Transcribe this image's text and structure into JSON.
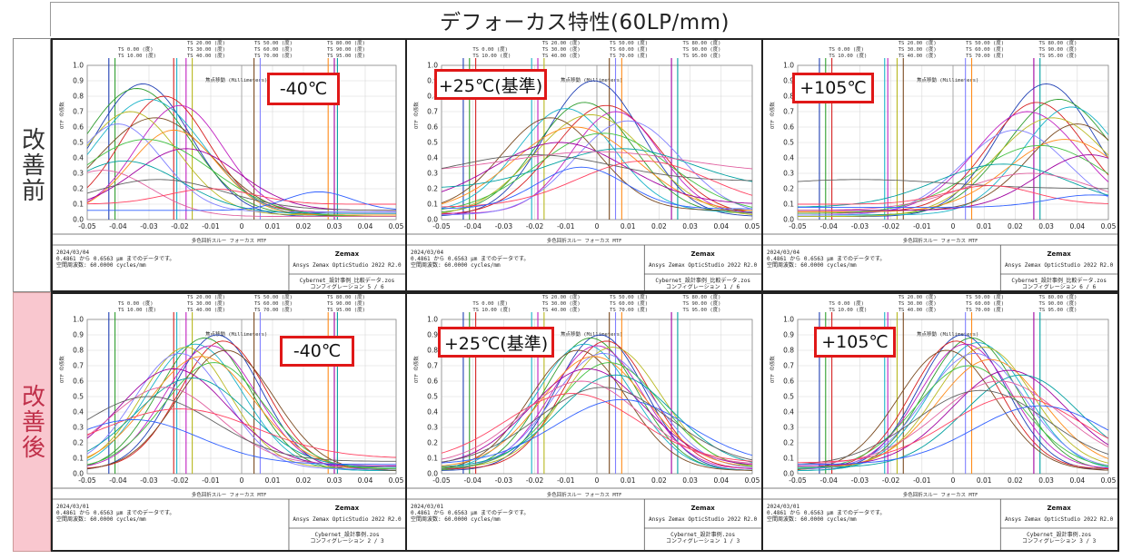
{
  "title": "デフォーカス特性(60LP/mm)",
  "row_labels": {
    "before": "改善前",
    "after": "改善後"
  },
  "colors": {
    "temp_box_border": "#e01818",
    "after_label_bg": "#f9c7cf",
    "after_label_text": "#c0304a"
  },
  "panel_text": {
    "plot_title": "多色回折スルー フォーカス MTF",
    "x_axis_label": "焦点移動 (Millimeters)",
    "y_axis_label": "OTF の係数",
    "company": "Zemax",
    "product": "Ansys Zemax OpticStudio 2022 R2.0",
    "wavelength_line": "0.4861 から 0.6563 µm までのデータです。",
    "freq_line": "空間周波数: 60.0000 cycles/mm",
    "field_legend": [
      "TS 0.00 (度)",
      "TS 10.00 (度)",
      "TS 20.00 (度)",
      "TS 30.00 (度)",
      "TS 40.00 (度)",
      "TS 50.00 (度)",
      "TS 60.00 (度)",
      "TS 70.00 (度)",
      "TS 80.00 (度)",
      "TS 90.00 (度)",
      "TS 95.00 (度)"
    ]
  },
  "chart_data": [
    {
      "type": "line",
      "row": "改善前",
      "temperature_label": "-40℃",
      "date": "2024/03/04",
      "file": "Cybernet_設計事例_比較データ.zos",
      "config": "コンフィグレーション 5 / 6",
      "xlim": [
        -0.05,
        0.05
      ],
      "ylim": [
        0,
        1.0
      ],
      "x_ticks": [
        "-0.05",
        "-0.04",
        "-0.03",
        "-0.02",
        "-0.01",
        "0",
        "0.01",
        "0.02",
        "0.03",
        "0.04",
        "0.05"
      ],
      "y_ticks": [
        "0.0",
        "0.1",
        "0.2",
        "0.3",
        "0.4",
        "0.5",
        "0.6",
        "0.7",
        "0.8",
        "0.9",
        "1.0"
      ],
      "field_markers": [
        -0.043,
        -0.041,
        -0.022,
        -0.021,
        -0.018,
        -0.016,
        0.004,
        0.006,
        0.028,
        0.03,
        0.031
      ],
      "series": [
        {
          "peak": 0.88,
          "center": -0.032,
          "width": 0.022,
          "floor": 0.02
        },
        {
          "peak": 0.85,
          "center": -0.034,
          "width": 0.024,
          "floor": 0.03
        },
        {
          "peak": 0.8,
          "center": -0.025,
          "width": 0.02,
          "floor": 0.05
        },
        {
          "peak": 0.78,
          "center": -0.03,
          "width": 0.025,
          "floor": 0.02
        },
        {
          "peak": 0.74,
          "center": -0.02,
          "width": 0.02,
          "floor": 0.04
        },
        {
          "peak": 0.7,
          "center": -0.036,
          "width": 0.022,
          "floor": 0.03
        },
        {
          "peak": 0.66,
          "center": -0.028,
          "width": 0.026,
          "floor": 0.02
        },
        {
          "peak": 0.62,
          "center": -0.04,
          "width": 0.02,
          "floor": 0.05
        },
        {
          "peak": 0.58,
          "center": -0.022,
          "width": 0.02,
          "floor": 0.03
        },
        {
          "peak": 0.52,
          "center": -0.031,
          "width": 0.03,
          "floor": 0.02
        },
        {
          "peak": 0.46,
          "center": -0.018,
          "width": 0.024,
          "floor": 0.06
        },
        {
          "peak": 0.38,
          "center": -0.038,
          "width": 0.026,
          "floor": 0.04
        },
        {
          "peak": 0.32,
          "center": -0.045,
          "width": 0.022,
          "floor": 0.02
        },
        {
          "peak": 0.26,
          "center": -0.027,
          "width": 0.03,
          "floor": 0.06
        },
        {
          "peak": 0.2,
          "center": -0.01,
          "width": 0.02,
          "floor": 0.1
        },
        {
          "peak": 0.18,
          "center": 0.025,
          "width": 0.015,
          "floor": 0.06
        }
      ]
    },
    {
      "type": "line",
      "row": "改善前",
      "temperature_label": "+25℃(基準)",
      "date": "2024/03/04",
      "file": "Cybernet_設計事例_比較データ.zos",
      "config": "コンフィグレーション 1 / 6",
      "xlim": [
        -0.05,
        0.05
      ],
      "ylim": [
        0,
        1.0
      ],
      "x_ticks": [
        "-0.05",
        "-0.04",
        "-0.03",
        "-0.02",
        "-0.01",
        "0",
        "0.01",
        "0.02",
        "0.03",
        "0.04",
        "0.05"
      ],
      "y_ticks": [
        "0.0",
        "0.1",
        "0.2",
        "0.3",
        "0.4",
        "0.5",
        "0.6",
        "0.7",
        "0.8",
        "0.9",
        "1.0"
      ],
      "field_markers": [
        -0.043,
        -0.041,
        -0.039,
        -0.021,
        -0.019,
        -0.017,
        0.004,
        0.006,
        0.008,
        0.024,
        0.026
      ],
      "series": [
        {
          "peak": 0.9,
          "center": -0.001,
          "width": 0.022,
          "floor": 0.02
        },
        {
          "peak": 0.76,
          "center": -0.004,
          "width": 0.022,
          "floor": 0.04
        },
        {
          "peak": 0.74,
          "center": 0.003,
          "width": 0.024,
          "floor": 0.03
        },
        {
          "peak": 0.72,
          "center": -0.01,
          "width": 0.022,
          "floor": 0.05
        },
        {
          "peak": 0.7,
          "center": 0.006,
          "width": 0.02,
          "floor": 0.04
        },
        {
          "peak": 0.68,
          "center": -0.002,
          "width": 0.026,
          "floor": 0.02
        },
        {
          "peak": 0.66,
          "center": -0.015,
          "width": 0.022,
          "floor": 0.06
        },
        {
          "peak": 0.64,
          "center": 0.01,
          "width": 0.024,
          "floor": 0.03
        },
        {
          "peak": 0.6,
          "center": -0.007,
          "width": 0.028,
          "floor": 0.05
        },
        {
          "peak": 0.56,
          "center": 0.002,
          "width": 0.03,
          "floor": 0.04
        },
        {
          "peak": 0.5,
          "center": -0.012,
          "width": 0.03,
          "floor": 0.1
        },
        {
          "peak": 0.46,
          "center": 0.008,
          "width": 0.032,
          "floor": 0.2
        },
        {
          "peak": 0.44,
          "center": 0.0,
          "width": 0.04,
          "floor": 0.3
        },
        {
          "peak": 0.42,
          "center": -0.02,
          "width": 0.035,
          "floor": 0.25
        },
        {
          "peak": 0.38,
          "center": 0.015,
          "width": 0.03,
          "floor": 0.08
        },
        {
          "peak": 0.34,
          "center": -0.005,
          "width": 0.02,
          "floor": 0.07
        }
      ]
    },
    {
      "type": "line",
      "row": "改善前",
      "temperature_label": "+105℃",
      "date": "2024/03/04",
      "file": "Cybernet_設計事例_比較データ.zos",
      "config": "コンフィグレーション 6 / 6",
      "xlim": [
        -0.05,
        0.05
      ],
      "ylim": [
        0,
        1.0
      ],
      "x_ticks": [
        "-0.05",
        "-0.04",
        "-0.03",
        "-0.02",
        "-0.01",
        "0",
        "0.01",
        "0.02",
        "0.03",
        "0.04",
        "0.05"
      ],
      "y_ticks": [
        "0.0",
        "0.1",
        "0.2",
        "0.3",
        "0.4",
        "0.5",
        "0.6",
        "0.7",
        "0.8",
        "0.9",
        "1.0"
      ],
      "field_markers": [
        -0.043,
        -0.041,
        -0.039,
        -0.022,
        -0.021,
        -0.018,
        -0.016,
        0.004,
        0.006,
        0.026,
        0.028
      ],
      "series": [
        {
          "peak": 0.88,
          "center": 0.03,
          "width": 0.022,
          "floor": 0.02
        },
        {
          "peak": 0.78,
          "center": 0.034,
          "width": 0.024,
          "floor": 0.03
        },
        {
          "peak": 0.76,
          "center": 0.027,
          "width": 0.022,
          "floor": 0.05
        },
        {
          "peak": 0.73,
          "center": 0.038,
          "width": 0.022,
          "floor": 0.03
        },
        {
          "peak": 0.7,
          "center": 0.024,
          "width": 0.024,
          "floor": 0.04
        },
        {
          "peak": 0.66,
          "center": 0.032,
          "width": 0.026,
          "floor": 0.02
        },
        {
          "peak": 0.62,
          "center": 0.04,
          "width": 0.022,
          "floor": 0.06
        },
        {
          "peak": 0.58,
          "center": 0.02,
          "width": 0.024,
          "floor": 0.03
        },
        {
          "peak": 0.52,
          "center": 0.036,
          "width": 0.026,
          "floor": 0.05
        },
        {
          "peak": 0.48,
          "center": 0.028,
          "width": 0.03,
          "floor": 0.04
        },
        {
          "peak": 0.42,
          "center": 0.044,
          "width": 0.024,
          "floor": 0.06
        },
        {
          "peak": 0.36,
          "center": 0.016,
          "width": 0.03,
          "floor": 0.08
        },
        {
          "peak": 0.3,
          "center": 0.025,
          "width": 0.03,
          "floor": 0.06
        },
        {
          "peak": 0.26,
          "center": -0.03,
          "width": 0.04,
          "floor": 0.2
        },
        {
          "peak": 0.22,
          "center": 0.012,
          "width": 0.02,
          "floor": 0.1
        },
        {
          "peak": 0.16,
          "center": 0.045,
          "width": 0.02,
          "floor": 0.08
        }
      ]
    },
    {
      "type": "line",
      "row": "改善後",
      "temperature_label": "-40℃",
      "date": "2024/03/01",
      "file": "Cybernet_設計事例.zos",
      "config": "コンフィグレーション 2 / 3",
      "xlim": [
        -0.05,
        0.05
      ],
      "ylim": [
        0,
        1.0
      ],
      "x_ticks": [
        "-0.05",
        "-0.04",
        "-0.03",
        "-0.02",
        "-0.01",
        "0",
        "0.01",
        "0.02",
        "0.03",
        "0.04",
        "0.05"
      ],
      "y_ticks": [
        "0.0",
        "0.1",
        "0.2",
        "0.3",
        "0.4",
        "0.5",
        "0.6",
        "0.7",
        "0.8",
        "0.9",
        "1.0"
      ],
      "field_markers": [
        -0.043,
        -0.041,
        -0.022,
        -0.021,
        -0.018,
        -0.016,
        0.004,
        0.006,
        0.028,
        0.03,
        0.031
      ],
      "series": [
        {
          "peak": 0.9,
          "center": -0.008,
          "width": 0.02,
          "floor": 0.02
        },
        {
          "peak": 0.88,
          "center": -0.012,
          "width": 0.021,
          "floor": 0.02
        },
        {
          "peak": 0.86,
          "center": -0.006,
          "width": 0.02,
          "floor": 0.03
        },
        {
          "peak": 0.84,
          "center": -0.015,
          "width": 0.022,
          "floor": 0.02
        },
        {
          "peak": 0.83,
          "center": -0.01,
          "width": 0.021,
          "floor": 0.03
        },
        {
          "peak": 0.82,
          "center": -0.018,
          "width": 0.02,
          "floor": 0.04
        },
        {
          "peak": 0.8,
          "center": -0.005,
          "width": 0.022,
          "floor": 0.02
        },
        {
          "peak": 0.78,
          "center": -0.02,
          "width": 0.021,
          "floor": 0.03
        },
        {
          "peak": 0.76,
          "center": -0.013,
          "width": 0.024,
          "floor": 0.04
        },
        {
          "peak": 0.72,
          "center": -0.009,
          "width": 0.023,
          "floor": 0.03
        },
        {
          "peak": 0.68,
          "center": -0.022,
          "width": 0.025,
          "floor": 0.05
        },
        {
          "peak": 0.62,
          "center": -0.016,
          "width": 0.026,
          "floor": 0.04
        },
        {
          "peak": 0.56,
          "center": -0.025,
          "width": 0.025,
          "floor": 0.06
        },
        {
          "peak": 0.5,
          "center": -0.03,
          "width": 0.03,
          "floor": 0.08
        },
        {
          "peak": 0.42,
          "center": -0.02,
          "width": 0.035,
          "floor": 0.1
        },
        {
          "peak": 0.35,
          "center": -0.035,
          "width": 0.03,
          "floor": 0.06
        }
      ]
    },
    {
      "type": "line",
      "row": "改善後",
      "temperature_label": "+25℃(基準)",
      "date": "2024/03/01",
      "file": "Cybernet_設計事例.zos",
      "config": "コンフィグレーション 1 / 3",
      "xlim": [
        -0.05,
        0.05
      ],
      "ylim": [
        0,
        1.0
      ],
      "x_ticks": [
        "-0.05",
        "-0.04",
        "-0.03",
        "-0.02",
        "-0.01",
        "0",
        "0.01",
        "0.02",
        "0.03",
        "0.04",
        "0.05"
      ],
      "y_ticks": [
        "0.0",
        "0.1",
        "0.2",
        "0.3",
        "0.4",
        "0.5",
        "0.6",
        "0.7",
        "0.8",
        "0.9",
        "1.0"
      ],
      "field_markers": [
        -0.043,
        -0.041,
        -0.039,
        -0.021,
        -0.019,
        -0.017,
        0.004,
        0.006,
        0.008,
        0.024,
        0.026
      ],
      "series": [
        {
          "peak": 0.9,
          "center": 0.001,
          "width": 0.02,
          "floor": 0.02
        },
        {
          "peak": 0.88,
          "center": -0.002,
          "width": 0.021,
          "floor": 0.02
        },
        {
          "peak": 0.86,
          "center": 0.003,
          "width": 0.02,
          "floor": 0.03
        },
        {
          "peak": 0.84,
          "center": -0.004,
          "width": 0.022,
          "floor": 0.02
        },
        {
          "peak": 0.83,
          "center": 0.0,
          "width": 0.021,
          "floor": 0.03
        },
        {
          "peak": 0.82,
          "center": 0.005,
          "width": 0.022,
          "floor": 0.04
        },
        {
          "peak": 0.8,
          "center": -0.006,
          "width": 0.022,
          "floor": 0.02
        },
        {
          "peak": 0.78,
          "center": 0.002,
          "width": 0.023,
          "floor": 0.03
        },
        {
          "peak": 0.76,
          "center": -0.001,
          "width": 0.024,
          "floor": 0.04
        },
        {
          "peak": 0.72,
          "center": 0.004,
          "width": 0.024,
          "floor": 0.03
        },
        {
          "peak": 0.68,
          "center": -0.003,
          "width": 0.026,
          "floor": 0.05
        },
        {
          "peak": 0.64,
          "center": 0.006,
          "width": 0.026,
          "floor": 0.04
        },
        {
          "peak": 0.6,
          "center": -0.005,
          "width": 0.027,
          "floor": 0.06
        },
        {
          "peak": 0.56,
          "center": 0.002,
          "width": 0.03,
          "floor": 0.05
        },
        {
          "peak": 0.52,
          "center": -0.008,
          "width": 0.03,
          "floor": 0.07
        },
        {
          "peak": 0.48,
          "center": 0.008,
          "width": 0.03,
          "floor": 0.06
        }
      ]
    },
    {
      "type": "line",
      "row": "改善後",
      "temperature_label": "+105℃",
      "date": "2024/03/01",
      "file": "Cybernet_設計事例.zos",
      "config": "コンフィグレーション 3 / 3",
      "xlim": [
        -0.05,
        0.05
      ],
      "ylim": [
        0,
        1.0
      ],
      "x_ticks": [
        "-0.05",
        "-0.04",
        "-0.03",
        "-0.02",
        "-0.01",
        "0",
        "0.01",
        "0.02",
        "0.03",
        "0.04",
        "0.05"
      ],
      "y_ticks": [
        "0.0",
        "0.1",
        "0.2",
        "0.3",
        "0.4",
        "0.5",
        "0.6",
        "0.7",
        "0.8",
        "0.9",
        "1.0"
      ],
      "field_markers": [
        -0.043,
        -0.041,
        -0.039,
        -0.022,
        -0.021,
        -0.018,
        -0.016,
        0.004,
        0.006,
        0.026,
        0.028
      ],
      "series": [
        {
          "peak": 0.9,
          "center": 0.003,
          "width": 0.02,
          "floor": 0.02
        },
        {
          "peak": 0.88,
          "center": 0.006,
          "width": 0.021,
          "floor": 0.02
        },
        {
          "peak": 0.86,
          "center": 0.001,
          "width": 0.02,
          "floor": 0.03
        },
        {
          "peak": 0.85,
          "center": 0.008,
          "width": 0.022,
          "floor": 0.02
        },
        {
          "peak": 0.84,
          "center": 0.004,
          "width": 0.021,
          "floor": 0.03
        },
        {
          "peak": 0.82,
          "center": 0.01,
          "width": 0.022,
          "floor": 0.04
        },
        {
          "peak": 0.8,
          "center": -0.002,
          "width": 0.022,
          "floor": 0.02
        },
        {
          "peak": 0.78,
          "center": 0.007,
          "width": 0.023,
          "floor": 0.03
        },
        {
          "peak": 0.74,
          "center": 0.012,
          "width": 0.024,
          "floor": 0.04
        },
        {
          "peak": 0.7,
          "center": 0.005,
          "width": 0.024,
          "floor": 0.03
        },
        {
          "peak": 0.67,
          "center": 0.018,
          "width": 0.026,
          "floor": 0.05
        },
        {
          "peak": 0.64,
          "center": 0.022,
          "width": 0.026,
          "floor": 0.04
        },
        {
          "peak": 0.6,
          "center": 0.015,
          "width": 0.028,
          "floor": 0.06
        },
        {
          "peak": 0.54,
          "center": 0.009,
          "width": 0.03,
          "floor": 0.05
        },
        {
          "peak": 0.5,
          "center": 0.02,
          "width": 0.03,
          "floor": 0.07
        },
        {
          "peak": 0.44,
          "center": 0.028,
          "width": 0.03,
          "floor": 0.06
        }
      ]
    }
  ]
}
